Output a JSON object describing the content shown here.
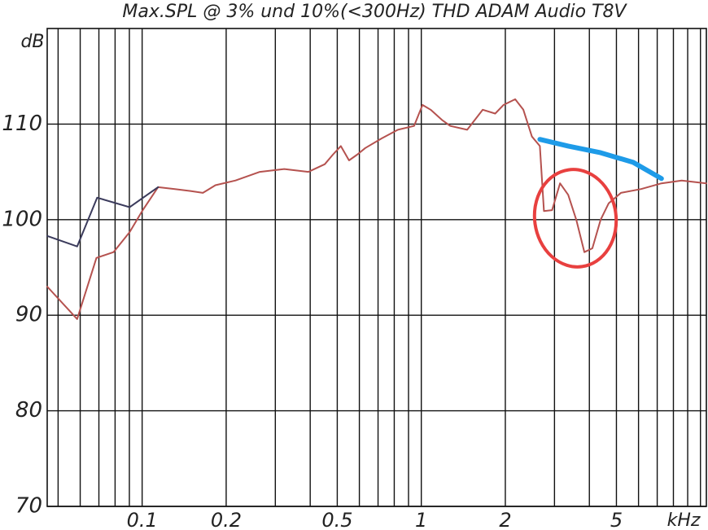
{
  "chart_data": {
    "type": "line",
    "title": "Max.SPL @ 3% und 10%(<300Hz) THD ADAM Audio T8V",
    "y_label": "dB",
    "x_label": "kHz",
    "xlog": true,
    "grid": true,
    "xlim": [
      0.0457,
      10.5
    ],
    "ylim": [
      70,
      120
    ],
    "xticks": [
      0.1,
      0.2,
      0.5,
      1,
      2,
      5
    ],
    "xminor": [
      0.05,
      0.06,
      0.07,
      0.08,
      0.09,
      0.3,
      0.4,
      0.6,
      0.7,
      0.8,
      0.9,
      3,
      4,
      6,
      7,
      8,
      9,
      10
    ],
    "yticks": [
      70,
      80,
      90,
      100,
      110
    ],
    "series": [
      {
        "color": "#b5524f",
        "width": 2,
        "x": [
          0.0457,
          0.0585,
          0.0686,
          0.079,
          0.0902,
          0.1,
          0.114,
          0.131,
          0.149,
          0.165,
          0.183,
          0.216,
          0.264,
          0.323,
          0.394,
          0.451,
          0.482,
          0.515,
          0.551,
          0.589,
          0.63,
          0.721,
          0.824,
          0.942,
          1.01,
          1.08,
          1.19,
          1.27,
          1.46,
          1.66,
          1.84,
          1.97,
          2.17,
          2.32,
          2.49,
          2.66,
          2.75,
          2.94,
          3.14,
          3.36,
          3.59,
          3.84,
          4.1,
          4.39,
          4.69,
          5.19,
          6.13,
          7.25,
          8.57,
          10.5
        ],
        "values": [
          93.0,
          89.6,
          96.0,
          96.6,
          98.7,
          100.9,
          103.4,
          103.2,
          103.0,
          102.8,
          103.6,
          104.1,
          105.0,
          105.3,
          105.0,
          105.8,
          106.8,
          107.7,
          106.2,
          106.8,
          107.5,
          108.5,
          109.4,
          109.8,
          112.0,
          111.5,
          110.4,
          109.8,
          109.4,
          111.5,
          111.1,
          112.0,
          112.6,
          111.5,
          108.7,
          107.7,
          100.9,
          101.0,
          103.8,
          102.6,
          100.0,
          96.6,
          97.0,
          100.0,
          101.7,
          102.8,
          103.2,
          103.8,
          104.1,
          103.8
        ]
      },
      {
        "color": "#3b3b5c",
        "width": 2,
        "x": [
          0.0457,
          0.0585,
          0.069,
          0.0902,
          0.114
        ],
        "values": [
          98.3,
          97.2,
          102.3,
          101.3,
          103.4
        ]
      },
      {
        "color": "#1e9be8",
        "width": 6,
        "x": [
          2.66,
          3.36,
          4.39,
          5.74,
          7.25
        ],
        "values": [
          108.4,
          107.7,
          107.0,
          106.0,
          104.3
        ]
      }
    ]
  }
}
